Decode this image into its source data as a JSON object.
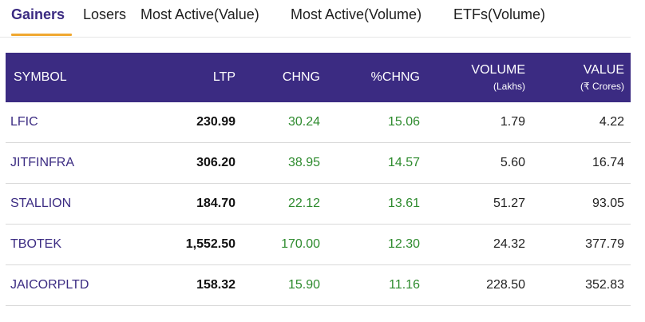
{
  "tabs": [
    {
      "label": "Gainers",
      "active": true
    },
    {
      "label": "Losers",
      "active": false
    },
    {
      "label": "Most Active(Value)",
      "active": false
    },
    {
      "label": "Most Active(Volume)",
      "active": false
    },
    {
      "label": "ETFs(Volume)",
      "active": false
    }
  ],
  "table": {
    "headers": {
      "symbol": "SYMBOL",
      "ltp": "LTP",
      "chng": "CHNG",
      "pchng": "%CHNG",
      "volume": "VOLUME",
      "volume_unit": "(Lakhs)",
      "value": "VALUE",
      "value_unit": "(₹ Crores)"
    },
    "rows": [
      {
        "symbol": "LFIC",
        "ltp": "230.99",
        "chng": "30.24",
        "pchng": "15.06",
        "volume": "1.79",
        "value": "4.22"
      },
      {
        "symbol": "JITFINFRA",
        "ltp": "306.20",
        "chng": "38.95",
        "pchng": "14.57",
        "volume": "5.60",
        "value": "16.74"
      },
      {
        "symbol": "STALLION",
        "ltp": "184.70",
        "chng": "22.12",
        "pchng": "13.61",
        "volume": "51.27",
        "value": "93.05"
      },
      {
        "symbol": "TBOTEK",
        "ltp": "1,552.50",
        "chng": "170.00",
        "pchng": "12.30",
        "volume": "24.32",
        "value": "377.79"
      },
      {
        "symbol": "JAICORPLTD",
        "ltp": "158.32",
        "chng": "15.90",
        "pchng": "11.16",
        "volume": "228.50",
        "value": "352.83"
      }
    ]
  },
  "colors": {
    "header_bg": "#3b2b82",
    "active_tab_text": "#3b2b82",
    "active_tab_underline": "#f0a830",
    "positive_change": "#2e8b2e"
  }
}
